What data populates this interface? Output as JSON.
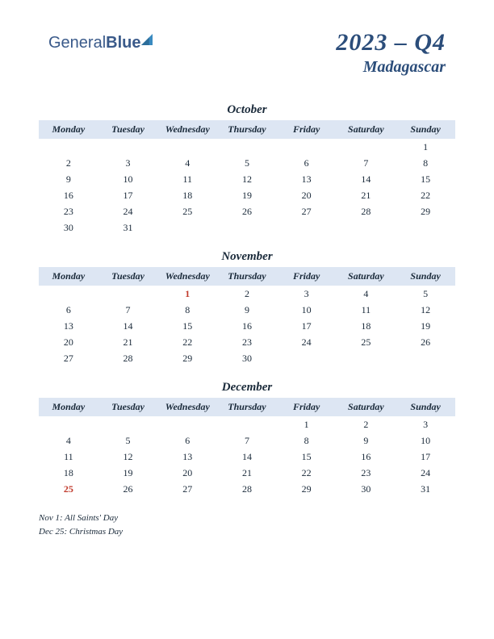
{
  "logo": {
    "part1": "General",
    "part2": "Blue",
    "icon_color": "#3a8ac0"
  },
  "header": {
    "title": "2023 – Q4",
    "country": "Madagascar"
  },
  "colors": {
    "accent": "#2b4d7a",
    "header_bg": "#dde6f3",
    "text": "#1a2a3a",
    "holiday": "#c0392b",
    "background": "#ffffff"
  },
  "day_headers": [
    "Monday",
    "Tuesday",
    "Wednesday",
    "Thursday",
    "Friday",
    "Saturday",
    "Sunday"
  ],
  "months": [
    {
      "name": "October",
      "weeks": [
        [
          "",
          "",
          "",
          "",
          "",
          "",
          "1"
        ],
        [
          "2",
          "3",
          "4",
          "5",
          "6",
          "7",
          "8"
        ],
        [
          "9",
          "10",
          "11",
          "12",
          "13",
          "14",
          "15"
        ],
        [
          "16",
          "17",
          "18",
          "19",
          "20",
          "21",
          "22"
        ],
        [
          "23",
          "24",
          "25",
          "26",
          "27",
          "28",
          "29"
        ],
        [
          "30",
          "31",
          "",
          "",
          "",
          "",
          ""
        ]
      ],
      "holidays": []
    },
    {
      "name": "November",
      "weeks": [
        [
          "",
          "",
          "1",
          "2",
          "3",
          "4",
          "5"
        ],
        [
          "6",
          "7",
          "8",
          "9",
          "10",
          "11",
          "12"
        ],
        [
          "13",
          "14",
          "15",
          "16",
          "17",
          "18",
          "19"
        ],
        [
          "20",
          "21",
          "22",
          "23",
          "24",
          "25",
          "26"
        ],
        [
          "27",
          "28",
          "29",
          "30",
          "",
          "",
          ""
        ]
      ],
      "holidays": [
        "1"
      ]
    },
    {
      "name": "December",
      "weeks": [
        [
          "",
          "",
          "",
          "",
          "1",
          "2",
          "3"
        ],
        [
          "4",
          "5",
          "6",
          "7",
          "8",
          "9",
          "10"
        ],
        [
          "11",
          "12",
          "13",
          "14",
          "15",
          "16",
          "17"
        ],
        [
          "18",
          "19",
          "20",
          "21",
          "22",
          "23",
          "24"
        ],
        [
          "25",
          "26",
          "27",
          "28",
          "29",
          "30",
          "31"
        ]
      ],
      "holidays": [
        "25"
      ]
    }
  ],
  "notes": [
    "Nov 1: All Saints' Day",
    "Dec 25: Christmas Day"
  ]
}
